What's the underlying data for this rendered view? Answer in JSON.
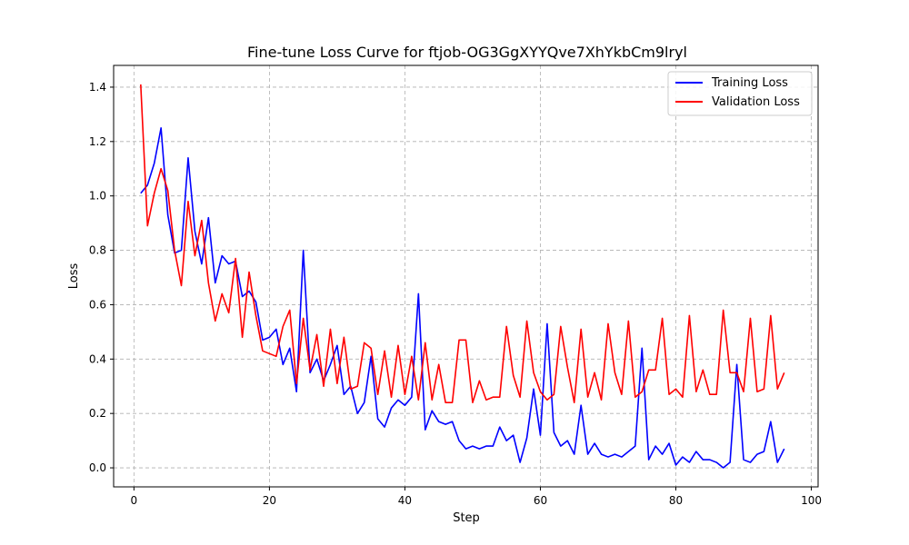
{
  "chart_data": {
    "type": "line",
    "title": "Fine-tune Loss Curve for ftjob-OG3GgXYYQve7XhYkbCm9lryl",
    "xlabel": "Step",
    "ylabel": "Loss",
    "xlim": [
      -3,
      101
    ],
    "ylim": [
      -0.07,
      1.48
    ],
    "xticks": [
      0,
      20,
      40,
      60,
      80,
      100
    ],
    "yticks": [
      0.0,
      0.2,
      0.4,
      0.6,
      0.8,
      1.0,
      1.2,
      1.4
    ],
    "grid": true,
    "legend_position": "top-right",
    "x": [
      1,
      2,
      3,
      4,
      5,
      6,
      7,
      8,
      9,
      10,
      11,
      12,
      13,
      14,
      15,
      16,
      17,
      18,
      19,
      20,
      21,
      22,
      23,
      24,
      25,
      26,
      27,
      28,
      29,
      30,
      31,
      32,
      33,
      34,
      35,
      36,
      37,
      38,
      39,
      40,
      41,
      42,
      43,
      44,
      45,
      46,
      47,
      48,
      49,
      50,
      51,
      52,
      53,
      54,
      55,
      56,
      57,
      58,
      59,
      60,
      61,
      62,
      63,
      64,
      65,
      66,
      67,
      68,
      69,
      70,
      71,
      72,
      73,
      74,
      75,
      76,
      77,
      78,
      79,
      80,
      81,
      82,
      83,
      84,
      85,
      86,
      87,
      88,
      89,
      90,
      91,
      92,
      93,
      94,
      95,
      96
    ],
    "series": [
      {
        "name": "Training Loss",
        "color": "#0000ff",
        "values": [
          1.01,
          1.04,
          1.12,
          1.25,
          0.93,
          0.79,
          0.8,
          1.14,
          0.87,
          0.75,
          0.92,
          0.68,
          0.78,
          0.75,
          0.76,
          0.63,
          0.65,
          0.61,
          0.47,
          0.48,
          0.51,
          0.38,
          0.44,
          0.28,
          0.8,
          0.35,
          0.4,
          0.32,
          0.38,
          0.45,
          0.27,
          0.3,
          0.2,
          0.24,
          0.41,
          0.18,
          0.15,
          0.22,
          0.25,
          0.23,
          0.26,
          0.64,
          0.14,
          0.21,
          0.17,
          0.16,
          0.17,
          0.1,
          0.07,
          0.08,
          0.07,
          0.08,
          0.08,
          0.15,
          0.1,
          0.12,
          0.02,
          0.11,
          0.29,
          0.12,
          0.53,
          0.13,
          0.08,
          0.1,
          0.05,
          0.23,
          0.05,
          0.09,
          0.05,
          0.04,
          0.05,
          0.04,
          0.06,
          0.08,
          0.44,
          0.03,
          0.08,
          0.05,
          0.09,
          0.01,
          0.04,
          0.02,
          0.06,
          0.03,
          0.03,
          0.02,
          0.0,
          0.02,
          0.38,
          0.03,
          0.02,
          0.05,
          0.06,
          0.17,
          0.02,
          0.07
        ]
      },
      {
        "name": "Validation Loss",
        "color": "#ff0000",
        "values": [
          1.41,
          0.89,
          1.01,
          1.1,
          1.02,
          0.8,
          0.67,
          0.98,
          0.78,
          0.91,
          0.68,
          0.54,
          0.64,
          0.57,
          0.77,
          0.48,
          0.72,
          0.56,
          0.43,
          0.42,
          0.41,
          0.52,
          0.58,
          0.31,
          0.55,
          0.36,
          0.49,
          0.3,
          0.51,
          0.31,
          0.48,
          0.29,
          0.3,
          0.46,
          0.44,
          0.27,
          0.43,
          0.26,
          0.45,
          0.27,
          0.41,
          0.25,
          0.46,
          0.25,
          0.38,
          0.24,
          0.24,
          0.47,
          0.47,
          0.24,
          0.32,
          0.25,
          0.26,
          0.26,
          0.52,
          0.34,
          0.26,
          0.54,
          0.35,
          0.28,
          0.25,
          0.27,
          0.52,
          0.37,
          0.24,
          0.51,
          0.26,
          0.35,
          0.25,
          0.53,
          0.35,
          0.27,
          0.54,
          0.26,
          0.28,
          0.36,
          0.36,
          0.55,
          0.27,
          0.29,
          0.26,
          0.56,
          0.28,
          0.36,
          0.27,
          0.27,
          0.58,
          0.35,
          0.35,
          0.28,
          0.55,
          0.28,
          0.29,
          0.56,
          0.29,
          0.35
        ]
      }
    ]
  }
}
